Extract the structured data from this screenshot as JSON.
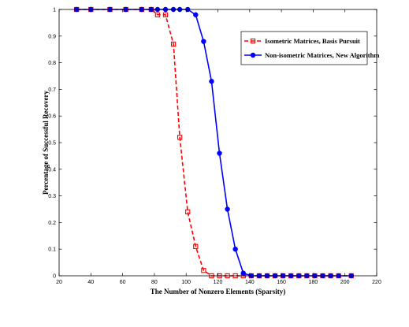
{
  "chart_data": {
    "type": "line",
    "title": "",
    "xlabel": "The Number of Nonzero Elements (Sparsity)",
    "ylabel": "Percentage of Successful Recovery",
    "xlim": [
      20,
      220
    ],
    "ylim": [
      0,
      1
    ],
    "xticks": [
      20,
      40,
      60,
      80,
      100,
      120,
      140,
      160,
      180,
      200,
      220
    ],
    "yticks": [
      0,
      0.1,
      0.2,
      0.3,
      0.4,
      0.5,
      0.6,
      0.7,
      0.8,
      0.9,
      1
    ],
    "xtick_labels": [
      "20",
      "40",
      "60",
      "80",
      "100",
      "120",
      "140",
      "160",
      "180",
      "200",
      "220"
    ],
    "ytick_labels": [
      "0",
      "0.1",
      "0.2",
      "0.3",
      "0.4",
      "0.5",
      "0.6",
      "0.7",
      "0.8",
      "0.9",
      "1"
    ],
    "grid": false,
    "legend_position": "top-right",
    "series": [
      {
        "name": "Isometric Matrices, Basis Pursuit",
        "color": "#ff0000",
        "line_style": "dashed",
        "marker": "square",
        "x": [
          31,
          40,
          52,
          62,
          72,
          78,
          82,
          87,
          92,
          96,
          101,
          106,
          111,
          116,
          121,
          126,
          131,
          136,
          141,
          146,
          151,
          156,
          161,
          166,
          171,
          176,
          181,
          186,
          191,
          196,
          204
        ],
        "y": [
          1,
          1,
          1,
          1,
          1,
          1,
          0.98,
          0.98,
          0.87,
          0.52,
          0.24,
          0.11,
          0.02,
          0,
          0,
          0,
          0,
          0,
          0,
          0,
          0,
          0,
          0,
          0,
          0,
          0,
          0,
          0,
          0,
          0,
          0
        ]
      },
      {
        "name": "Non-isometric Matrices, New Algorithm",
        "color": "#0000ff",
        "line_style": "solid",
        "marker": "circle",
        "x": [
          31,
          40,
          52,
          62,
          72,
          78,
          82,
          87,
          92,
          96,
          101,
          106,
          111,
          116,
          121,
          126,
          131,
          136,
          141,
          146,
          151,
          156,
          161,
          166,
          171,
          176,
          181,
          186,
          191,
          196,
          204
        ],
        "y": [
          1,
          1,
          1,
          1,
          1,
          1,
          1,
          1,
          1,
          1,
          1,
          0.98,
          0.88,
          0.73,
          0.46,
          0.25,
          0.1,
          0.01,
          0,
          0,
          0,
          0,
          0,
          0,
          0,
          0,
          0,
          0,
          0,
          0,
          0
        ]
      }
    ]
  }
}
